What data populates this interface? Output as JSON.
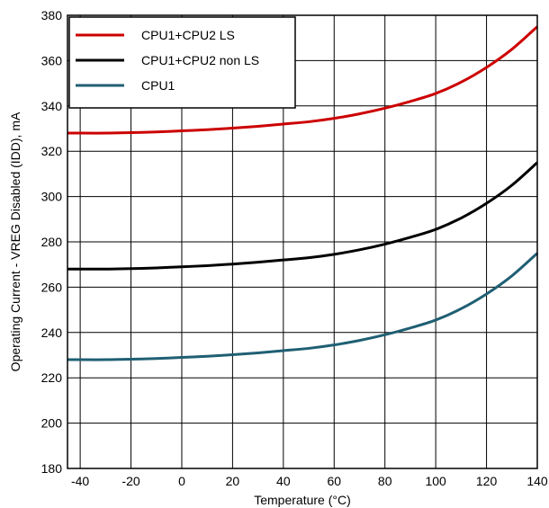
{
  "chart_data": {
    "type": "line",
    "title": "",
    "xlabel": "Temperature (°C)",
    "ylabel": "Operating Current - VREG Disabled (IDD), mA",
    "xlim": [
      -45,
      140
    ],
    "ylim": [
      180,
      380
    ],
    "xticks": [
      -40,
      -20,
      0,
      20,
      40,
      60,
      80,
      100,
      120,
      140
    ],
    "yticks": [
      180,
      200,
      220,
      240,
      260,
      280,
      300,
      320,
      340,
      360,
      380
    ],
    "grid": true,
    "legend_position": "top-left",
    "series": [
      {
        "name": "CPU1+CPU2 LS",
        "color": "#cc0000",
        "x": [
          -45,
          -40,
          -30,
          -20,
          -10,
          0,
          10,
          20,
          30,
          40,
          50,
          60,
          70,
          80,
          90,
          100,
          110,
          120,
          130,
          140
        ],
        "y": [
          328,
          328,
          328,
          328.2,
          328.5,
          329,
          329.5,
          330.2,
          331,
          332,
          333,
          334.5,
          336.5,
          339,
          342,
          345.5,
          350.5,
          357,
          365,
          375
        ]
      },
      {
        "name": "CPU1+CPU2 non LS",
        "color": "#000000",
        "x": [
          -45,
          -40,
          -30,
          -20,
          -10,
          0,
          10,
          20,
          30,
          40,
          50,
          60,
          70,
          80,
          90,
          100,
          110,
          120,
          130,
          140
        ],
        "y": [
          268,
          268,
          268,
          268.2,
          268.5,
          269,
          269.5,
          270.2,
          271,
          272,
          273,
          274.5,
          276.5,
          279,
          282,
          285.5,
          290.5,
          297,
          305,
          315
        ]
      },
      {
        "name": "CPU1",
        "color": "#1f5f73",
        "x": [
          -45,
          -40,
          -30,
          -20,
          -10,
          0,
          10,
          20,
          30,
          40,
          50,
          60,
          70,
          80,
          90,
          100,
          110,
          120,
          130,
          140
        ],
        "y": [
          228,
          228,
          228,
          228.2,
          228.5,
          229,
          229.5,
          230.2,
          231,
          232,
          233,
          234.5,
          236.5,
          239,
          242,
          245.5,
          250.5,
          257,
          265,
          275
        ]
      }
    ]
  }
}
